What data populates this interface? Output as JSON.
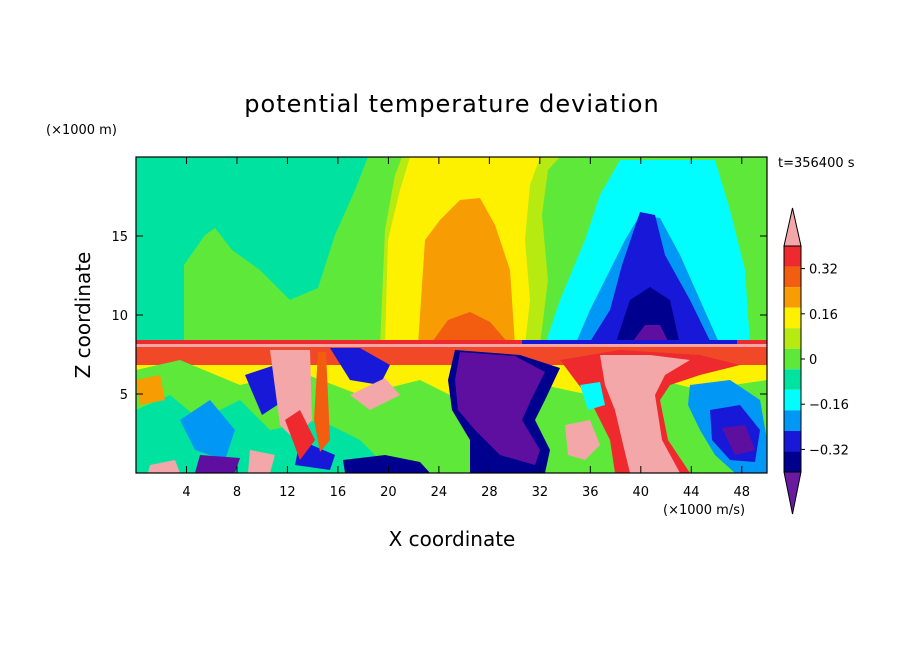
{
  "chart_data": {
    "type": "heatmap",
    "title": "potential temperature deviation",
    "xlabel": "X coordinate",
    "ylabel": "Z coordinate",
    "x_units": "(×1000 m/s)",
    "y_units": "(×1000 m)",
    "time_label": "t=356400 s",
    "xlim": [
      0,
      50
    ],
    "ylim": [
      0,
      20
    ],
    "x_ticks": [
      4,
      8,
      12,
      16,
      20,
      24,
      28,
      32,
      36,
      40,
      44,
      48
    ],
    "y_ticks": [
      5,
      10,
      15
    ],
    "colorbar": {
      "levels": [
        -0.4,
        -0.32,
        -0.24,
        -0.16,
        -0.08,
        0,
        0.08,
        0.16,
        0.24,
        0.32,
        0.4
      ],
      "tick_labels": [
        "0.32",
        "0.16",
        "0",
        "−0.16",
        "−0.32"
      ],
      "tick_values": [
        0.32,
        0.16,
        0,
        -0.16,
        -0.32
      ],
      "colors_high_to_low": [
        "#f4a7a9",
        "#ee2a2e",
        "#f25d10",
        "#f79c02",
        "#fef100",
        "#b6ea11",
        "#5ee83a",
        "#00e3a0",
        "#00fefe",
        "#0097f5",
        "#1818d9",
        "#00008f",
        "#5f0f9f"
      ],
      "over_color": "#f4a7a9",
      "under_color": "#6a1aa0"
    },
    "regions_data_units": [
      {
        "value": "upper-green-field",
        "x": [
          0,
          50
        ],
        "z": [
          8.3,
          20
        ]
      },
      {
        "value": "lower-turbulent-layer",
        "x": [
          0,
          50
        ],
        "z": [
          0,
          8.3
        ]
      }
    ]
  }
}
